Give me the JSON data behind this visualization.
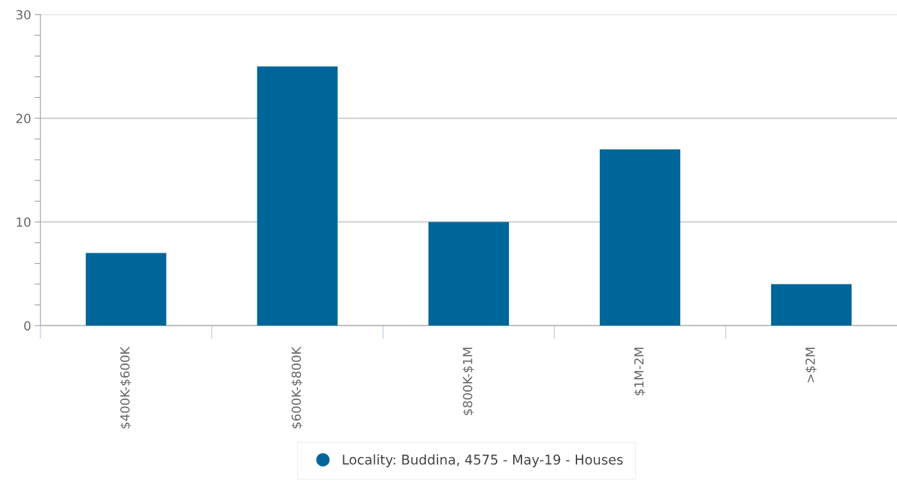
{
  "chart_data": {
    "type": "bar",
    "categories": [
      "$400K-$600K",
      "$600K-$800K",
      "$800K-$1M",
      "$1M-2M",
      ">$2M"
    ],
    "series": [
      {
        "name": "Locality: Buddina, 4575 - May-19 - Houses",
        "color": "#006699",
        "values": [
          7,
          25,
          10,
          17,
          4
        ]
      }
    ],
    "ylim": [
      0,
      30
    ],
    "yticks": [
      0,
      {
        "value": 2,
        "label": null
      },
      {
        "value": 4,
        "label": null
      },
      {
        "value": 6,
        "label": null
      },
      {
        "value": 8,
        "label": null
      },
      10,
      {
        "value": 12,
        "label": null
      },
      {
        "value": 14,
        "label": null
      },
      {
        "value": 16,
        "label": null
      },
      {
        "value": 18,
        "label": null
      },
      20,
      {
        "value": 22,
        "label": null
      },
      {
        "value": 24,
        "label": null
      },
      {
        "value": 26,
        "label": null
      },
      {
        "value": 28,
        "label": null
      },
      30
    ],
    "grid": "y",
    "legend": "bottom"
  }
}
